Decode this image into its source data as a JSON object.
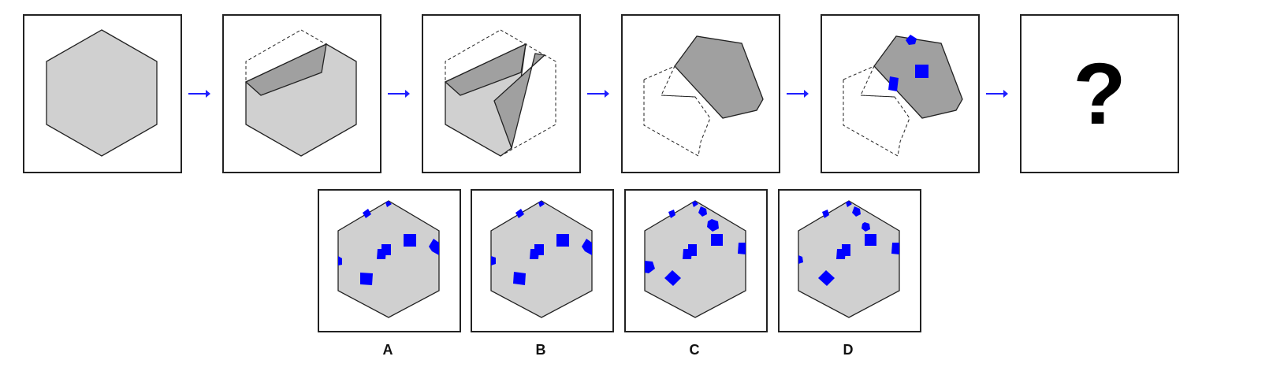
{
  "puzzle": {
    "question_mark": "?",
    "colors": {
      "paper": "#d0d0d0",
      "folded": "#a0a0a0",
      "hole": "#0000ff",
      "arrow": "#1f1fff",
      "stroke": "#222222"
    },
    "steps": [
      {
        "name": "unfolded-hexagon"
      },
      {
        "name": "first-fold"
      },
      {
        "name": "second-fold"
      },
      {
        "name": "folded-shape"
      },
      {
        "name": "punched-shape"
      },
      {
        "name": "unknown-result"
      }
    ]
  },
  "options": [
    {
      "label": "A"
    },
    {
      "label": "B"
    },
    {
      "label": "C"
    },
    {
      "label": "D"
    }
  ]
}
